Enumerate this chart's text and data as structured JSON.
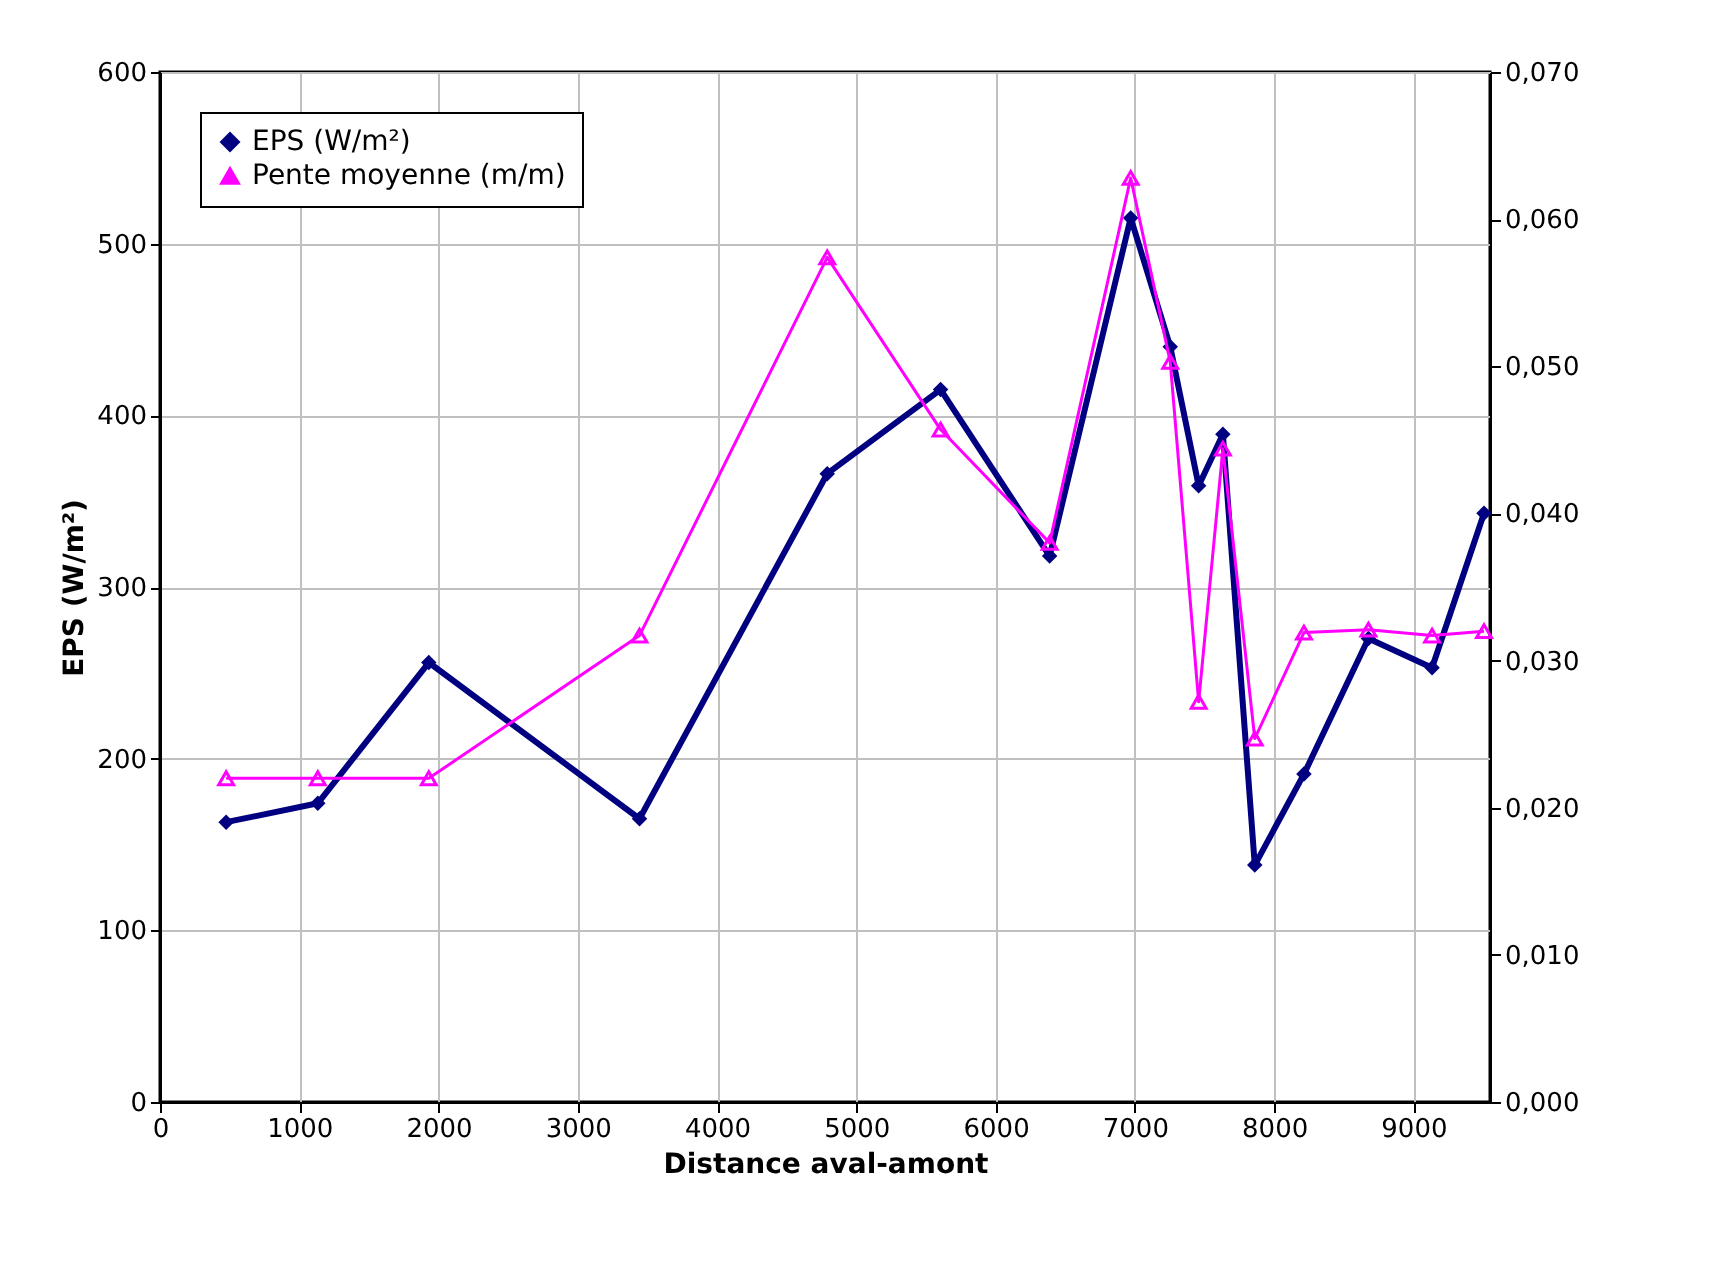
{
  "chart_data": {
    "type": "line",
    "xlabel": "Distance aval-amont",
    "ylabel": "EPS (W/m²)",
    "x": [
      475,
      1133,
      1930,
      3443,
      4791,
      5605,
      6388,
      6970,
      7254,
      7458,
      7632,
      7861,
      8214,
      8677,
      9134,
      9507
    ],
    "series": [
      {
        "name": "EPS (W/m²)",
        "color": "#000080",
        "marker": "diamond",
        "values": [
          163,
          174,
          256,
          165,
          366,
          415,
          318,
          515,
          440,
          359,
          389,
          138,
          191,
          270,
          253,
          343
        ]
      },
      {
        "name": "Pente moyenne (m/m)",
        "color": "#ff00ff",
        "marker": "triangle",
        "axis": "y2",
        "values": [
          0.022,
          0.022,
          0.022,
          0.0317,
          0.0574,
          0.0457,
          0.038,
          0.0628,
          0.0503,
          0.0272,
          0.0444,
          0.0247,
          0.0319,
          0.0321,
          0.0317,
          0.032
        ]
      }
    ],
    "xlim": [
      0,
      9550
    ],
    "xticks": [
      0,
      1000,
      2000,
      3000,
      4000,
      5000,
      6000,
      7000,
      8000,
      9000
    ],
    "ylim": [
      0,
      600
    ],
    "yticks": [
      0,
      100,
      200,
      300,
      400,
      500,
      600
    ],
    "y2lim": [
      0,
      0.07
    ],
    "y2ticks": [
      {
        "value": 0,
        "label": "0,000"
      },
      {
        "value": 0.01,
        "label": "0,010"
      },
      {
        "value": 0.02,
        "label": "0,020"
      },
      {
        "value": 0.03,
        "label": "0,030"
      },
      {
        "value": 0.04,
        "label": "0,040"
      },
      {
        "value": 0.05,
        "label": "0,050"
      },
      {
        "value": 0.06,
        "label": "0,060"
      },
      {
        "value": 0.07,
        "label": "0,070"
      }
    ],
    "grid": true,
    "legend": "top left",
    "line_style": "solid"
  }
}
